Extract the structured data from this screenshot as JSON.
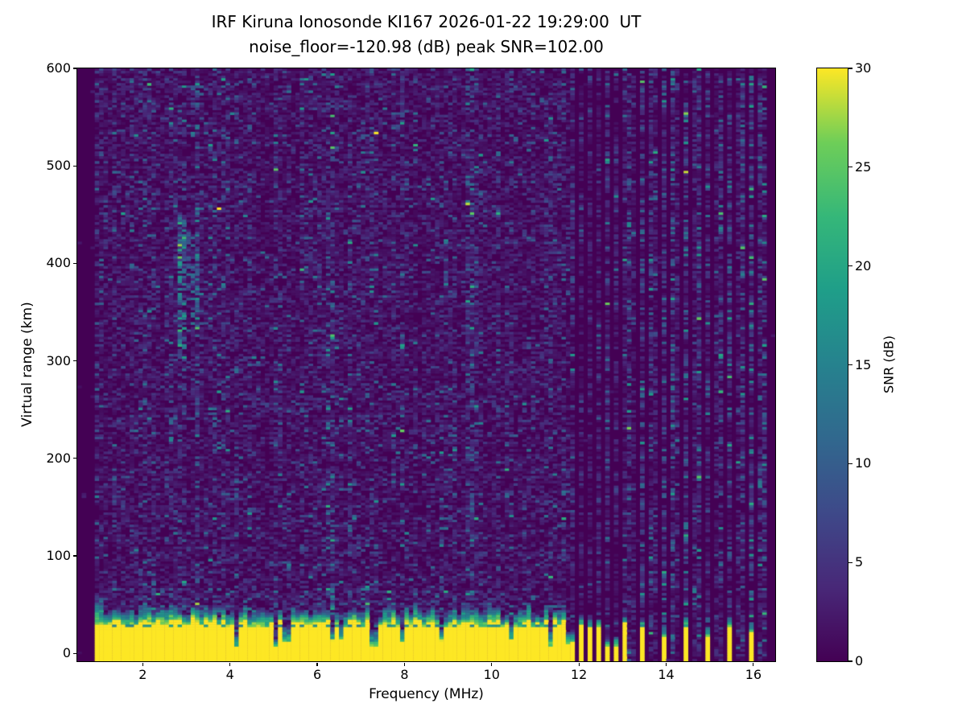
{
  "figure": {
    "background": "#ffffff"
  },
  "chart_data": {
    "type": "heatmap",
    "title_line1": "IRF Kiruna Ionosonde KI167 2026-01-22 19:29:00  UT",
    "title_line2": "noise_floor=-120.98 (dB) peak SNR=102.00",
    "station": "IRF Kiruna Ionosonde KI167",
    "timestamp_ut": "2026-01-22 19:29:00",
    "noise_floor_db": -120.98,
    "peak_snr_db": 102.0,
    "xlabel": "Frequency (MHz)",
    "ylabel": "Virtual range (km)",
    "xlim": [
      0.5,
      16.5
    ],
    "ylim": [
      -8,
      600
    ],
    "x_ticks": [
      2,
      4,
      6,
      8,
      10,
      12,
      14,
      16
    ],
    "y_ticks": [
      0,
      100,
      200,
      300,
      400,
      500,
      600
    ],
    "grid": false,
    "colorbar": {
      "label": "SNR (dB)",
      "vmin": 0,
      "vmax": 30,
      "ticks": [
        0,
        5,
        10,
        15,
        20,
        25,
        30
      ],
      "position": "right"
    },
    "colormap": "viridis",
    "colormap_stops": [
      [
        0.0,
        "#440154"
      ],
      [
        0.125,
        "#482878"
      ],
      [
        0.25,
        "#3e4989"
      ],
      [
        0.375,
        "#31688e"
      ],
      [
        0.5,
        "#26828e"
      ],
      [
        0.625,
        "#1f9e89"
      ],
      [
        0.75,
        "#35b779"
      ],
      [
        0.875,
        "#6ece58"
      ],
      [
        1.0,
        "#fde725"
      ]
    ],
    "features": {
      "data_freq_range_mhz": [
        0.95,
        16.42
      ],
      "freq_bin_mhz": 0.1,
      "range_bin_km": 2.5,
      "ground_clutter_band": {
        "range_km": [
          0,
          35
        ],
        "snr_db": 30,
        "freq_range_mhz": [
          0.95,
          11.66
        ]
      },
      "clutter_teal_line_km": 28.5,
      "contiguous_region_mhz": [
        0.95,
        11.66
      ],
      "striped_region_mhz": [
        11.66,
        13.06
      ],
      "stripe_period_mhz": 0.185,
      "sparse_region_mhz": [
        13.06,
        16.42
      ],
      "sparse_column_spacing_mhz": 0.5,
      "sparse_strong_columns_mhz": [
        13.45,
        13.95,
        14.45,
        14.95,
        15.45,
        15.95
      ],
      "ionospheric_echo": {
        "freq_mhz": [
          2.78,
          3.3
        ],
        "virtual_range_km": [
          300,
          450
        ],
        "snr_db": "8-20"
      },
      "interference_columns_mhz": [
        3.26,
        6.3,
        9.5
      ],
      "noise_speckle_mean_db": 2,
      "seed": 7
    }
  }
}
